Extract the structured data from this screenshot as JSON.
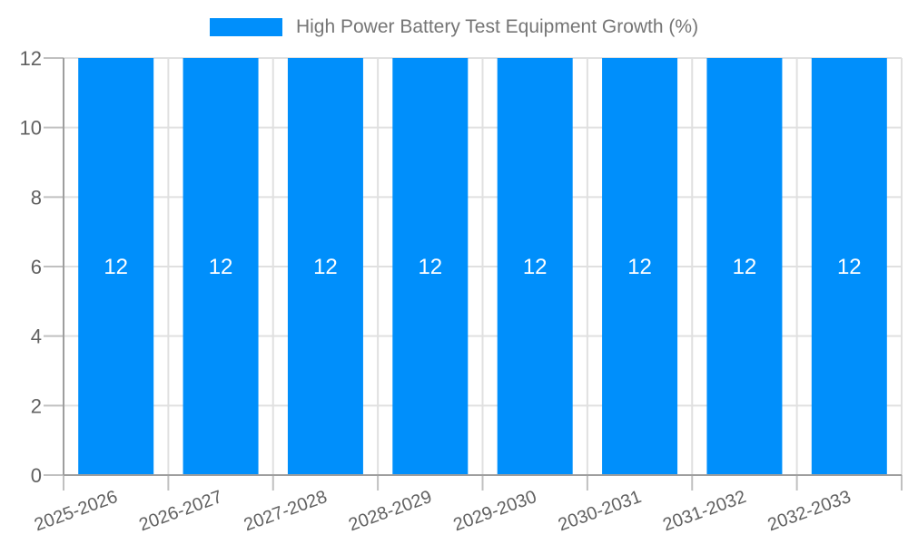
{
  "legend": {
    "label": "High Power Battery Test Equipment Growth (%)"
  },
  "chart_data": {
    "type": "bar",
    "title": "High Power Battery Test Equipment Growth (%)",
    "categories": [
      "2025-2026",
      "2026-2027",
      "2027-2028",
      "2028-2029",
      "2029-2030",
      "2030-2031",
      "2031-2032",
      "2032-2033"
    ],
    "series": [
      {
        "name": "High Power Battery Test Equipment Growth (%)",
        "values": [
          12,
          12,
          12,
          12,
          12,
          12,
          12,
          12
        ]
      }
    ],
    "bar_value_labels": [
      "12",
      "12",
      "12",
      "12",
      "12",
      "12",
      "12",
      "12"
    ],
    "xlabel": "",
    "ylabel": "",
    "ylim": [
      0,
      12
    ],
    "ytick_values": [
      0,
      2,
      4,
      6,
      8,
      10,
      12
    ],
    "ytick_labels": [
      "0",
      "2",
      "4",
      "6",
      "8",
      "10",
      "12"
    ],
    "x_label_rotation": -20,
    "grid": true,
    "legend_position": "top-center",
    "colors": {
      "bar": "#008ffb",
      "grid": "#e0e0e0",
      "axis": "#9e9e9e",
      "tick": "#c0c0c0",
      "label_text": "#616161",
      "title_text": "#757575",
      "bar_label_text": "#ffffff"
    }
  }
}
